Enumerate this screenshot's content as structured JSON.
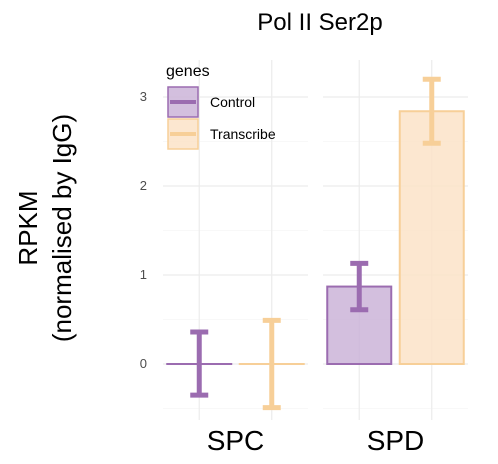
{
  "chart_data": {
    "type": "bar",
    "title": "Pol II Ser2p",
    "ylabel_line1": "RPKM",
    "ylabel_line2": "(normalised by IgG)",
    "xlabel": "",
    "categories": [
      "SPC",
      "SPD"
    ],
    "ylim": [
      -0.52,
      3.35
    ],
    "yticks": [
      0,
      1,
      2,
      3
    ],
    "grid": true,
    "legend": {
      "title": "genes",
      "position": "top-left"
    },
    "series": [
      {
        "name": "Control",
        "color": "#9b6cb0",
        "fill": "#cbb4d8",
        "values": [
          0.0,
          0.87
        ],
        "err_low": [
          -0.35,
          0.61
        ],
        "err_high": [
          0.36,
          1.13
        ]
      },
      {
        "name": "Transcribe",
        "color": "#f7cf98",
        "fill": "#fbe3c8",
        "values": [
          0.0,
          2.84
        ],
        "err_low": [
          -0.49,
          2.48
        ],
        "err_high": [
          0.49,
          3.2
        ]
      }
    ]
  }
}
